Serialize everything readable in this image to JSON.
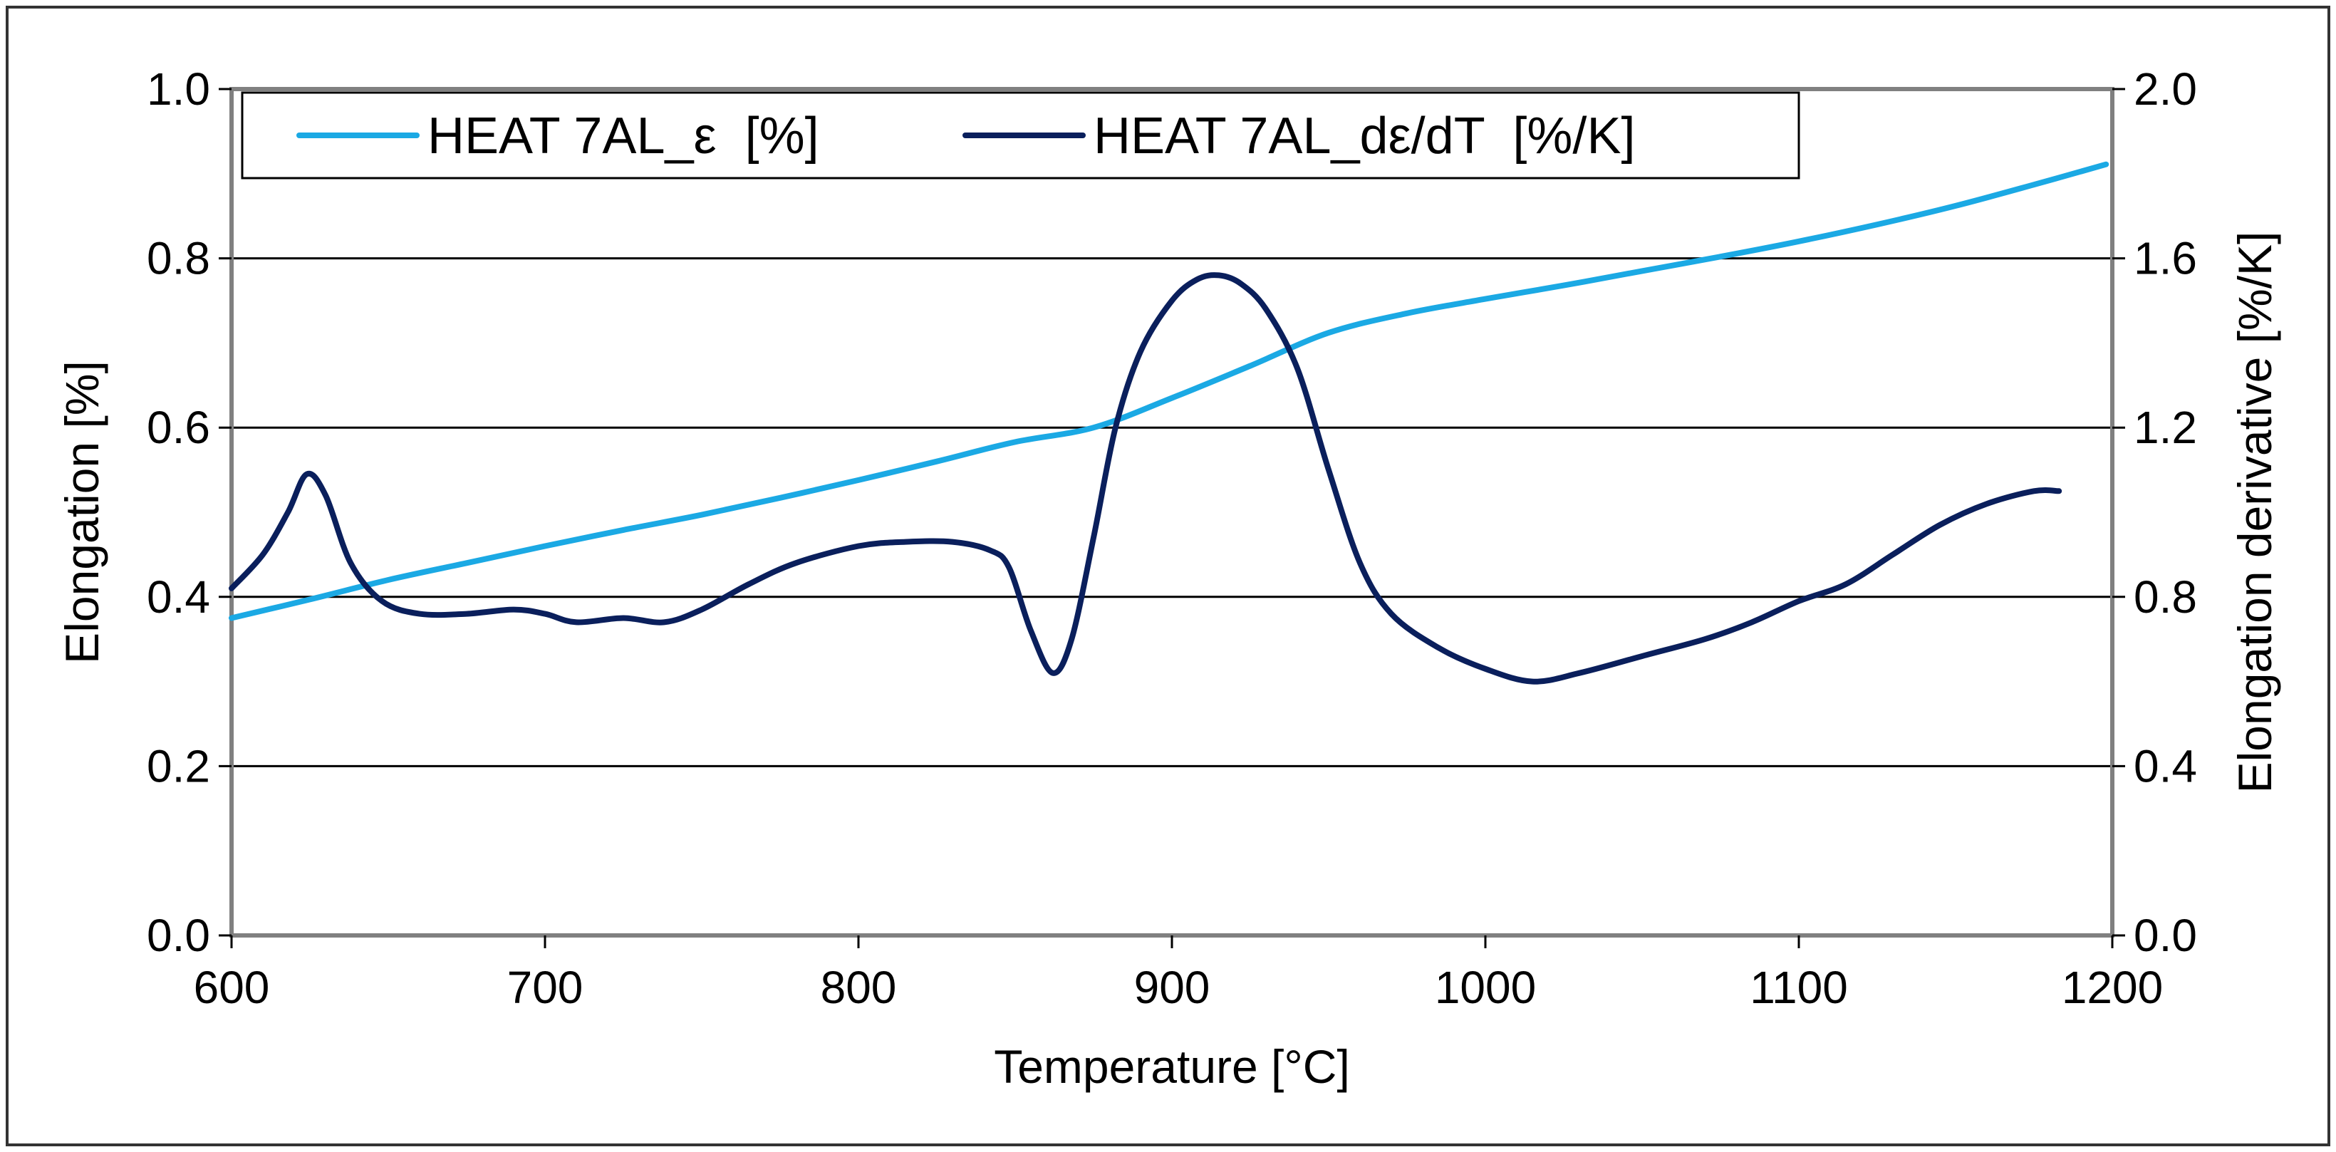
{
  "chart_data": {
    "type": "line",
    "title": "",
    "xlabel": "Temperature [°C]",
    "ylabel_left": "Elongation [%]",
    "ylabel_right": "Elongation derivative [%/K]",
    "xlim": [
      600,
      1200
    ],
    "ylim_left": [
      0,
      1.0
    ],
    "ylim_right": [
      0,
      2.0
    ],
    "x_ticks": [
      "600",
      "700",
      "800",
      "900",
      "1000",
      "1100",
      "1200"
    ],
    "y_ticks_left": [
      "0.0",
      "0.2",
      "0.4",
      "0.6",
      "0.8",
      "1.0"
    ],
    "y_ticks_right": [
      "0.0",
      "0.4",
      "0.8",
      "1.2",
      "1.6",
      "2.0"
    ],
    "grid": "horizontal",
    "legend_position": "top-left",
    "series": [
      {
        "name": "HEAT 7AL_ε  [%]",
        "axis": "left",
        "color": "#1ba9e4",
        "x": [
          600,
          625,
          650,
          675,
          700,
          725,
          750,
          775,
          800,
          825,
          850,
          875,
          900,
          925,
          950,
          975,
          1000,
          1025,
          1050,
          1075,
          1100,
          1125,
          1150,
          1175,
          1198
        ],
        "y": [
          0.375,
          0.397,
          0.42,
          0.44,
          0.46,
          0.479,
          0.497,
          0.517,
          0.538,
          0.56,
          0.583,
          0.6,
          0.635,
          0.673,
          0.712,
          0.735,
          0.752,
          0.768,
          0.785,
          0.802,
          0.82,
          0.84,
          0.862,
          0.887,
          0.911
        ]
      },
      {
        "name": "HEAT 7AL_dε/dT  [%/K]",
        "axis": "right",
        "color": "#0a1f5c",
        "x": [
          600,
          610,
          618,
          624,
          630,
          638,
          648,
          660,
          675,
          690,
          700,
          710,
          725,
          738,
          750,
          765,
          780,
          800,
          815,
          830,
          842,
          848,
          855,
          862,
          868,
          875,
          882,
          890,
          900,
          908,
          915,
          922,
          930,
          940,
          950,
          960,
          970,
          985,
          1000,
          1015,
          1030,
          1050,
          1070,
          1085,
          1100,
          1115,
          1130,
          1145,
          1160,
          1175,
          1183
        ],
        "y": [
          0.82,
          0.9,
          1.0,
          1.09,
          1.04,
          0.88,
          0.79,
          0.76,
          0.76,
          0.77,
          0.76,
          0.74,
          0.75,
          0.74,
          0.77,
          0.83,
          0.88,
          0.92,
          0.93,
          0.93,
          0.91,
          0.87,
          0.72,
          0.62,
          0.7,
          0.94,
          1.2,
          1.38,
          1.5,
          1.55,
          1.56,
          1.54,
          1.48,
          1.34,
          1.1,
          0.88,
          0.76,
          0.68,
          0.63,
          0.6,
          0.62,
          0.66,
          0.7,
          0.74,
          0.79,
          0.83,
          0.9,
          0.97,
          1.02,
          1.05,
          1.05
        ]
      }
    ]
  }
}
